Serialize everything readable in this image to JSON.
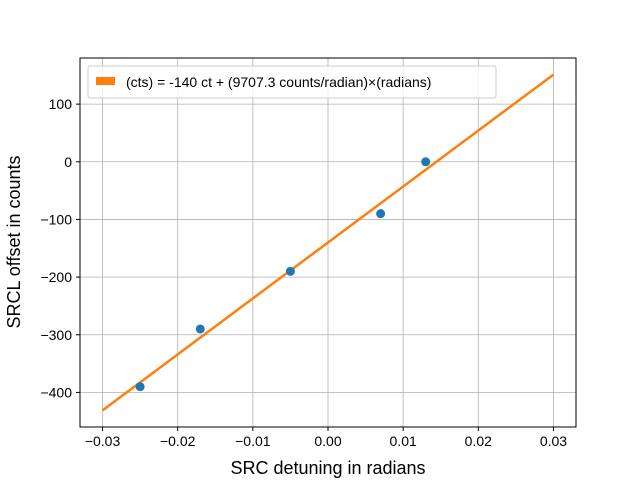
{
  "chart_data": {
    "type": "scatter",
    "xlabel": "SRC detuning in radians",
    "ylabel": "SRCL offset in counts",
    "xlim": [
      -0.033,
      0.033
    ],
    "ylim": [
      -460,
      180
    ],
    "xticks": [
      -0.03,
      -0.02,
      -0.01,
      0.0,
      0.01,
      0.02,
      0.03
    ],
    "xtick_labels": [
      "−0.03",
      "−0.02",
      "−0.01",
      "0.00",
      "0.01",
      "0.02",
      "0.03"
    ],
    "yticks": [
      100,
      0,
      -100,
      -200,
      -300,
      -400
    ],
    "ytick_labels": [
      "100",
      "0",
      "−100",
      "−200",
      "−300",
      "−400"
    ],
    "grid": true,
    "legend_position": "top-left",
    "series": [
      {
        "type": "scatter",
        "color": "#1f77b4",
        "points": [
          {
            "x": -0.025,
            "y": -390
          },
          {
            "x": -0.017,
            "y": -290
          },
          {
            "x": -0.005,
            "y": -190
          },
          {
            "x": 0.007,
            "y": -90
          },
          {
            "x": 0.013,
            "y": 0
          }
        ]
      },
      {
        "type": "line",
        "name": "(cts) = -140 ct + (9707.3 counts/radian)×(radians)",
        "color": "#ff7f0e",
        "intercept": -140,
        "slope": 9707.3,
        "x_range": [
          -0.03,
          0.03
        ]
      }
    ]
  }
}
